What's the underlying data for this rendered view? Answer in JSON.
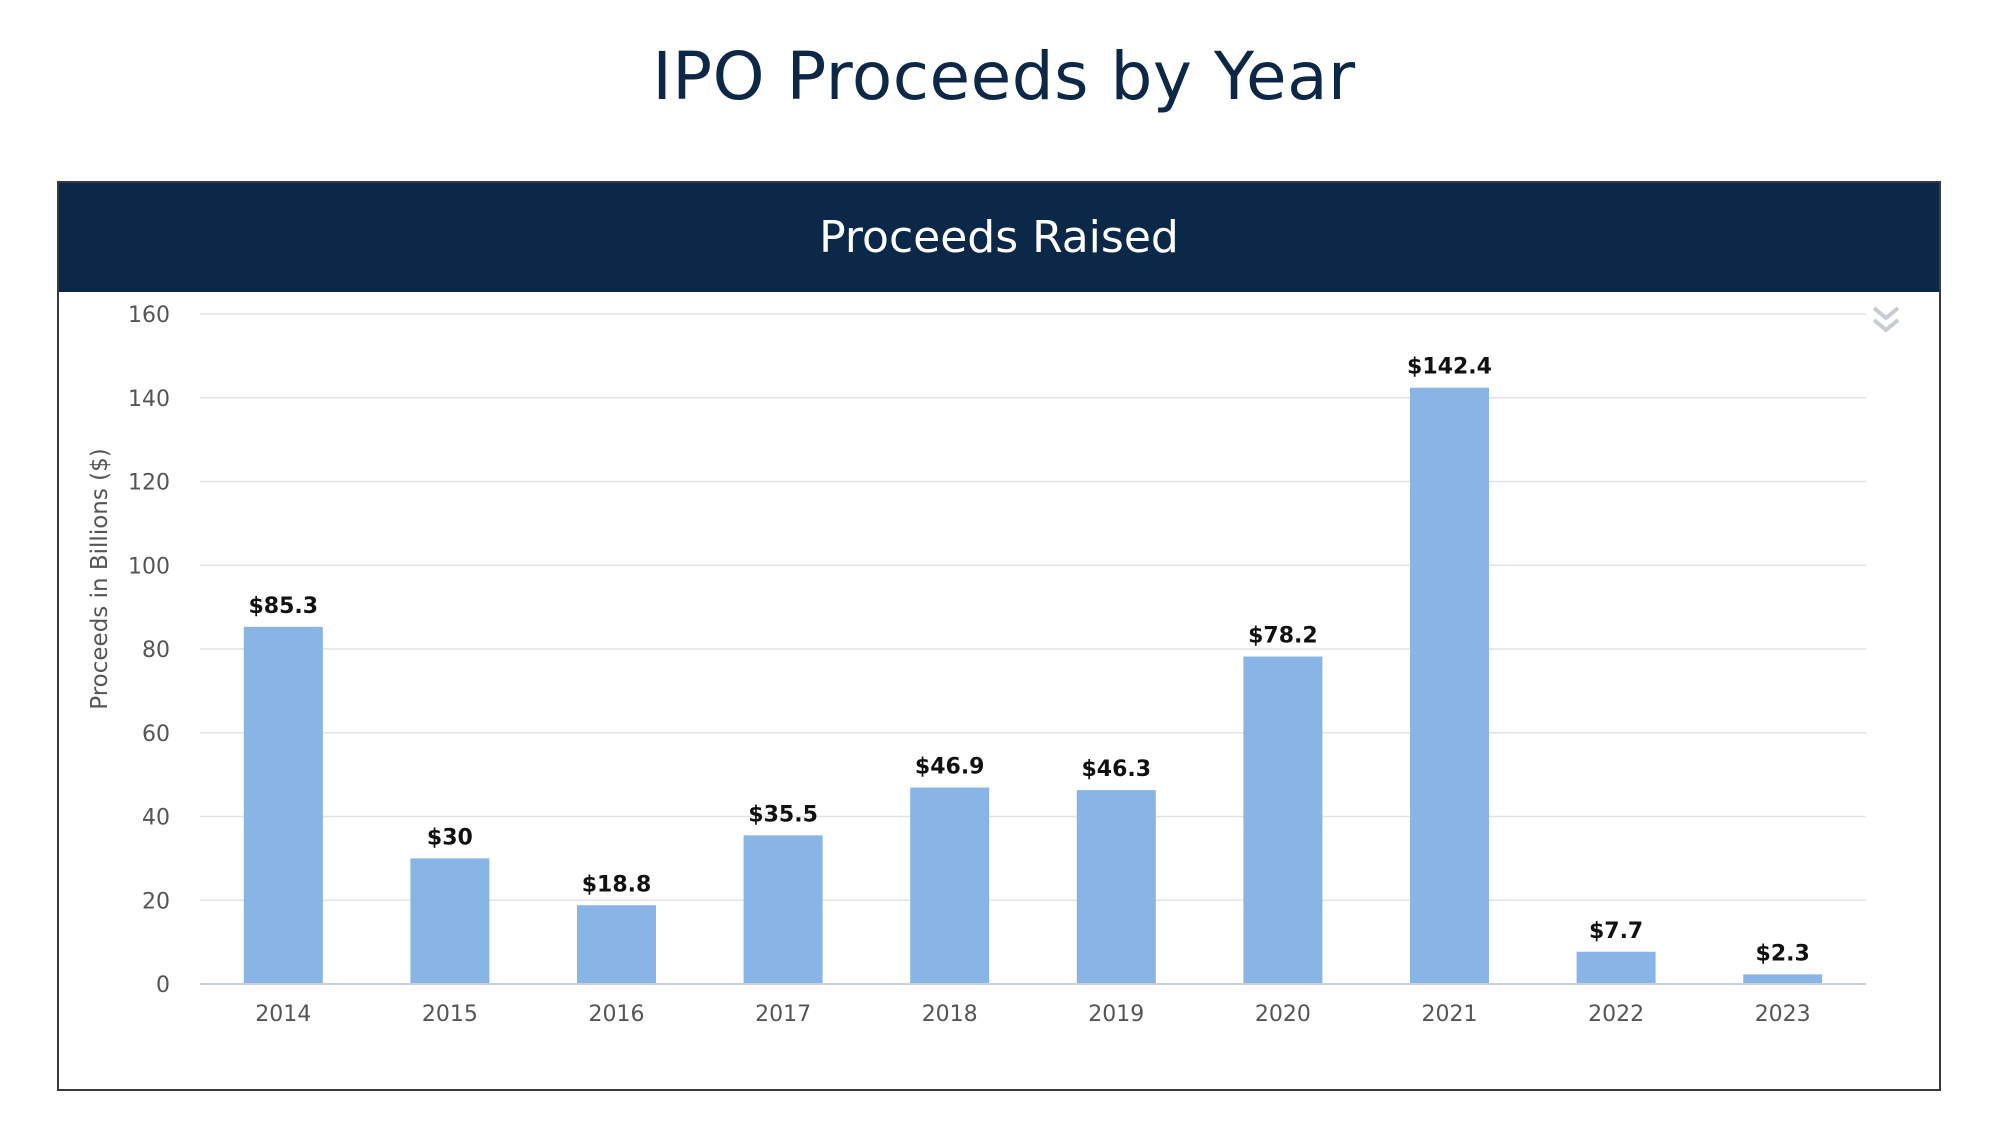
{
  "page": {
    "title": "IPO Proceeds by Year"
  },
  "panel": {
    "header": "Proceeds Raised",
    "menu_icon": "chevron-double-down-icon"
  },
  "colors": {
    "bar": "#89b4e6",
    "header_bg": "#0c2848",
    "title": "#0d2747",
    "grid": "#e3e3e3",
    "axis_text": "#555555",
    "label_text": "#111111"
  },
  "chart_data": {
    "type": "bar",
    "title": "Proceeds Raised",
    "xlabel": "",
    "ylabel": "Proceeds in Billions ($)",
    "categories": [
      "2014",
      "2015",
      "2016",
      "2017",
      "2018",
      "2019",
      "2020",
      "2021",
      "2022",
      "2023"
    ],
    "values": [
      85.3,
      30,
      18.8,
      35.5,
      46.9,
      46.3,
      78.2,
      142.4,
      7.7,
      2.3
    ],
    "data_labels": [
      "$85.3",
      "$30",
      "$18.8",
      "$35.5",
      "$46.9",
      "$46.3",
      "$78.2",
      "$142.4",
      "$7.7",
      "$2.3"
    ],
    "ylim": [
      0,
      160
    ],
    "yticks": [
      0,
      20,
      40,
      60,
      80,
      100,
      120,
      140,
      160
    ],
    "grid": true,
    "legend": "none"
  }
}
